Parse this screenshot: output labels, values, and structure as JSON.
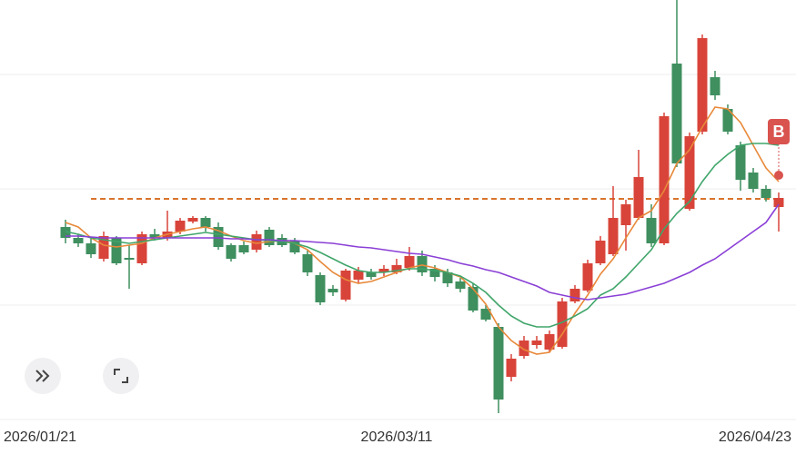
{
  "chart_data": {
    "type": "candlestick",
    "categories": [
      "2026/01/21",
      null,
      null,
      null,
      null,
      null,
      null,
      null,
      null,
      null,
      null,
      null,
      null,
      null,
      null,
      null,
      null,
      null,
      null,
      null,
      null,
      null,
      null,
      null,
      null,
      null,
      "2026/03/11",
      null,
      null,
      null,
      null,
      null,
      null,
      null,
      null,
      null,
      null,
      null,
      null,
      null,
      null,
      null,
      null,
      null,
      null,
      null,
      null,
      null,
      null,
      null,
      null,
      null,
      null,
      null,
      null,
      null,
      "2026/04/23"
    ],
    "open": [
      250,
      238,
      232,
      215,
      238,
      216,
      210,
      242,
      238,
      245,
      256,
      260,
      250,
      230,
      230,
      225,
      247,
      238,
      235,
      220,
      197,
      182,
      170,
      192,
      200,
      200,
      200,
      205,
      218,
      204,
      200,
      190,
      184,
      160,
      140,
      85,
      108,
      120,
      115,
      118,
      168,
      180,
      210,
      220,
      252,
      260,
      260,
      232,
      430,
      270,
      355,
      415,
      380,
      340,
      310,
      292,
      272
    ],
    "close": [
      238,
      232,
      220,
      240,
      210,
      214,
      242,
      238,
      245,
      257,
      260,
      250,
      228,
      215,
      222,
      242,
      230,
      230,
      222,
      200,
      167,
      178,
      202,
      202,
      195,
      204,
      208,
      218,
      200,
      195,
      188,
      182,
      158,
      148,
      60,
      105,
      125,
      125,
      132,
      168,
      182,
      210,
      235,
      260,
      275,
      305,
      232,
      372,
      320,
      350,
      458,
      395,
      355,
      302,
      292,
      282,
      282
    ],
    "high": [
      258,
      242,
      238,
      245,
      240,
      230,
      245,
      248,
      268,
      260,
      262,
      262,
      255,
      232,
      234,
      246,
      250,
      242,
      238,
      224,
      200,
      186,
      204,
      206,
      204,
      208,
      215,
      228,
      224,
      208,
      204,
      194,
      188,
      164,
      144,
      110,
      130,
      130,
      136,
      172,
      186,
      214,
      240,
      295,
      280,
      335,
      275,
      376,
      500,
      354,
      462,
      422,
      385,
      344,
      315,
      296,
      288
    ],
    "low": [
      232,
      228,
      216,
      212,
      208,
      182,
      208,
      235,
      235,
      242,
      254,
      245,
      225,
      212,
      220,
      222,
      228,
      228,
      220,
      196,
      164,
      174,
      168,
      188,
      192,
      196,
      198,
      202,
      196,
      190,
      184,
      178,
      156,
      146,
      45,
      80,
      105,
      116,
      112,
      116,
      166,
      178,
      208,
      218,
      224,
      258,
      228,
      230,
      316,
      268,
      352,
      390,
      352,
      290,
      288,
      278,
      245
    ],
    "up_color": "#d8443a",
    "down_color": "#3f8f5f",
    "series": [
      {
        "color": "#e8893a",
        "values": [
          255,
          250,
          238,
          230,
          228,
          230,
          232,
          238,
          242,
          245,
          248,
          250,
          246,
          240,
          235,
          232,
          234,
          235,
          232,
          225,
          212,
          200,
          192,
          188,
          190,
          195,
          200,
          205,
          208,
          205,
          200,
          195,
          182,
          165,
          140,
          125,
          115,
          110,
          112,
          132,
          155,
          175,
          198,
          215,
          238,
          260,
          268,
          290,
          320,
          335,
          360,
          382,
          380,
          365,
          340,
          315,
          300
        ]
      },
      {
        "color": "#3fa56a",
        "values": [
          245,
          242,
          238,
          236,
          234,
          232,
          234,
          236,
          238,
          240,
          242,
          244,
          242,
          240,
          238,
          236,
          235,
          234,
          232,
          228,
          222,
          215,
          208,
          202,
          200,
          200,
          202,
          204,
          204,
          202,
          200,
          196,
          188,
          178,
          164,
          152,
          144,
          140,
          140,
          145,
          152,
          160,
          175,
          182,
          195,
          210,
          225,
          248,
          265,
          278,
          300,
          318,
          330,
          340,
          342,
          342,
          340
        ]
      },
      {
        "color": "#8a3fd6",
        "values": [
          240,
          240,
          239,
          238,
          238,
          238,
          238,
          238,
          238,
          238,
          238,
          238,
          238,
          237,
          237,
          236,
          236,
          235,
          235,
          234,
          233,
          232,
          230,
          228,
          227,
          225,
          223,
          221,
          220,
          217,
          214,
          210,
          207,
          203,
          200,
          195,
          190,
          185,
          178,
          175,
          172,
          170,
          172,
          174,
          176,
          180,
          184,
          188,
          194,
          200,
          208,
          215,
          225,
          235,
          245,
          255,
          275
        ]
      }
    ],
    "hline": {
      "value": 281,
      "color": "#d9742c"
    },
    "marker": {
      "label": "B",
      "value": 307,
      "color": "#d9534f"
    },
    "ylim": [
      0,
      500
    ],
    "grid": true
  }
}
